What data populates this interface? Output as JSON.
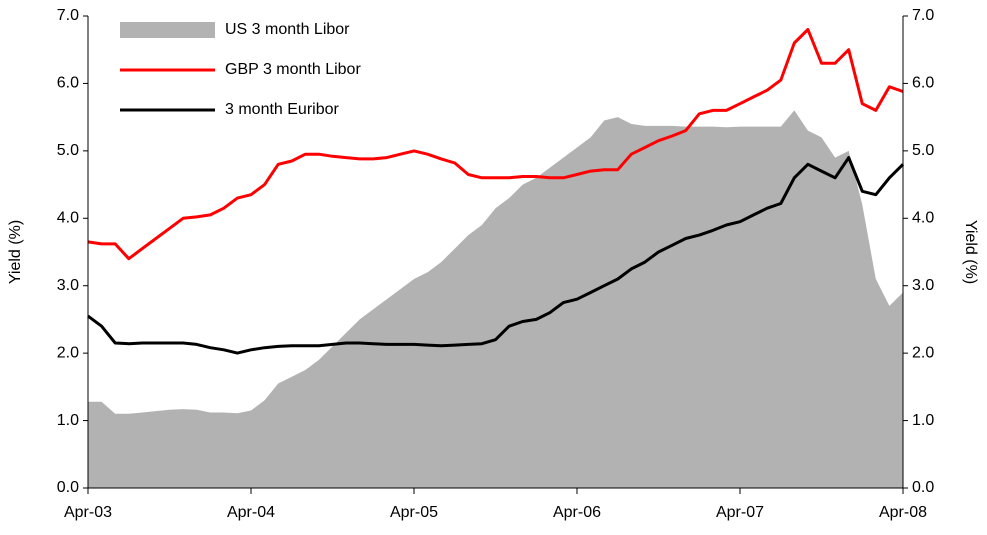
{
  "chart_data": {
    "type": "line",
    "x": [
      "2003-04",
      "2003-05",
      "2003-06",
      "2003-07",
      "2003-08",
      "2003-09",
      "2003-10",
      "2003-11",
      "2003-12",
      "2004-01",
      "2004-02",
      "2004-03",
      "2004-04",
      "2004-05",
      "2004-06",
      "2004-07",
      "2004-08",
      "2004-09",
      "2004-10",
      "2004-11",
      "2004-12",
      "2005-01",
      "2005-02",
      "2005-03",
      "2005-04",
      "2005-05",
      "2005-06",
      "2005-07",
      "2005-08",
      "2005-09",
      "2005-10",
      "2005-11",
      "2005-12",
      "2006-01",
      "2006-02",
      "2006-03",
      "2006-04",
      "2006-05",
      "2006-06",
      "2006-07",
      "2006-08",
      "2006-09",
      "2006-10",
      "2006-11",
      "2006-12",
      "2007-01",
      "2007-02",
      "2007-03",
      "2007-04",
      "2007-05",
      "2007-06",
      "2007-07",
      "2007-08",
      "2007-09",
      "2007-10",
      "2007-11",
      "2007-12",
      "2008-01",
      "2008-02",
      "2008-03",
      "2008-04"
    ],
    "series": [
      {
        "name": "US 3 month Libor",
        "kind": "area",
        "color": "#b2b2b2",
        "values": [
          1.28,
          1.28,
          1.1,
          1.1,
          1.12,
          1.14,
          1.16,
          1.17,
          1.16,
          1.12,
          1.12,
          1.11,
          1.15,
          1.3,
          1.55,
          1.65,
          1.75,
          1.9,
          2.1,
          2.3,
          2.5,
          2.65,
          2.8,
          2.95,
          3.1,
          3.2,
          3.35,
          3.55,
          3.75,
          3.9,
          4.15,
          4.3,
          4.5,
          4.6,
          4.75,
          4.9,
          5.05,
          5.2,
          5.45,
          5.5,
          5.4,
          5.37,
          5.37,
          5.37,
          5.36,
          5.36,
          5.36,
          5.35,
          5.36,
          5.36,
          5.36,
          5.36,
          5.6,
          5.3,
          5.2,
          4.9,
          5.0,
          4.2,
          3.1,
          2.7,
          2.9
        ]
      },
      {
        "name": "GBP 3 month Libor",
        "kind": "line",
        "color": "#ff0000",
        "values": [
          3.65,
          3.62,
          3.62,
          3.4,
          3.55,
          3.7,
          3.85,
          4.0,
          4.02,
          4.05,
          4.15,
          4.3,
          4.35,
          4.5,
          4.8,
          4.85,
          4.95,
          4.95,
          4.92,
          4.9,
          4.88,
          4.88,
          4.9,
          4.95,
          5.0,
          4.95,
          4.88,
          4.82,
          4.65,
          4.6,
          4.6,
          4.6,
          4.62,
          4.62,
          4.6,
          4.6,
          4.65,
          4.7,
          4.72,
          4.72,
          4.95,
          5.05,
          5.15,
          5.22,
          5.3,
          5.55,
          5.6,
          5.6,
          5.7,
          5.8,
          5.9,
          6.05,
          6.6,
          6.8,
          6.3,
          6.3,
          6.5,
          5.7,
          5.6,
          5.95,
          5.88
        ]
      },
      {
        "name": "3 month Euribor",
        "kind": "line",
        "color": "#000000",
        "values": [
          2.55,
          2.4,
          2.15,
          2.14,
          2.15,
          2.15,
          2.15,
          2.15,
          2.13,
          2.08,
          2.05,
          2.0,
          2.05,
          2.08,
          2.1,
          2.11,
          2.11,
          2.11,
          2.13,
          2.15,
          2.15,
          2.14,
          2.13,
          2.13,
          2.13,
          2.12,
          2.11,
          2.12,
          2.13,
          2.14,
          2.2,
          2.4,
          2.47,
          2.5,
          2.6,
          2.75,
          2.8,
          2.9,
          3.0,
          3.1,
          3.25,
          3.35,
          3.5,
          3.6,
          3.7,
          3.75,
          3.82,
          3.9,
          3.95,
          4.05,
          4.15,
          4.22,
          4.6,
          4.8,
          4.7,
          4.6,
          4.9,
          4.4,
          4.35,
          4.6,
          4.8
        ]
      }
    ],
    "xlim": [
      "2003-04",
      "2008-04"
    ],
    "xticks": [
      {
        "value": "2003-04",
        "label": "Apr-03"
      },
      {
        "value": "2004-04",
        "label": "Apr-04"
      },
      {
        "value": "2005-04",
        "label": "Apr-05"
      },
      {
        "value": "2006-04",
        "label": "Apr-06"
      },
      {
        "value": "2007-04",
        "label": "Apr-07"
      },
      {
        "value": "2008-04",
        "label": "Apr-08"
      }
    ],
    "ylim": [
      0,
      7
    ],
    "yticks": [
      {
        "value": 0,
        "label": "0.0"
      },
      {
        "value": 1,
        "label": "1.0"
      },
      {
        "value": 2,
        "label": "2.0"
      },
      {
        "value": 3,
        "label": "3.0"
      },
      {
        "value": 4,
        "label": "4.0"
      },
      {
        "value": 5,
        "label": "5.0"
      },
      {
        "value": 6,
        "label": "6.0"
      },
      {
        "value": 7,
        "label": "7.0"
      }
    ],
    "y2lim": [
      0,
      7
    ],
    "y2ticks": [
      {
        "value": 0,
        "label": "0.0"
      },
      {
        "value": 1,
        "label": "1.0"
      },
      {
        "value": 2,
        "label": "2.0"
      },
      {
        "value": 3,
        "label": "3.0"
      },
      {
        "value": 4,
        "label": "4.0"
      },
      {
        "value": 5,
        "label": "5.0"
      },
      {
        "value": 6,
        "label": "6.0"
      },
      {
        "value": 7,
        "label": "7.0"
      }
    ],
    "ylabel": "Yield (%)",
    "y2label": "Yield (%)",
    "legend": "upper left",
    "grid": false
  }
}
